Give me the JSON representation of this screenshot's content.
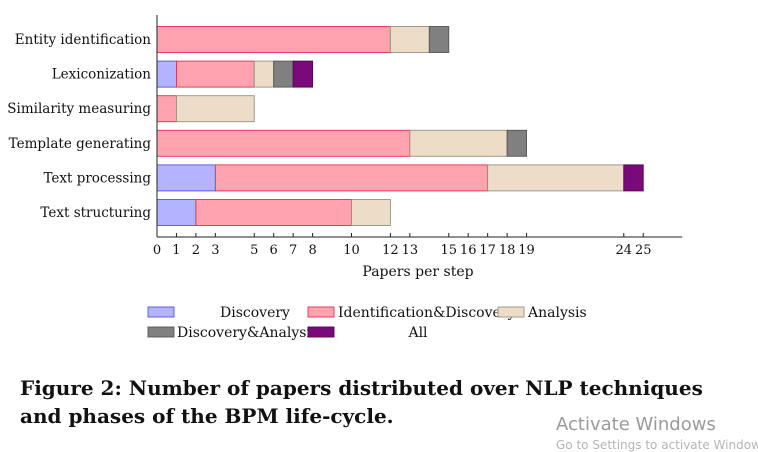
{
  "chart_data": {
    "type": "bar",
    "orientation": "horizontal",
    "stacked": true,
    "categories": [
      "Entity identification",
      "Lexiconization",
      "Similarity measuring",
      "Template generating",
      "Text processing",
      "Text structuring"
    ],
    "series": [
      {
        "name": "Discovery",
        "color": "#b3b3ff",
        "edge": "#5555dd",
        "values": [
          0,
          1,
          0,
          0,
          3,
          2
        ]
      },
      {
        "name": "Identification&Discovery",
        "color": "#ffa3b1",
        "edge": "#e03050",
        "values": [
          12,
          4,
          1,
          13,
          14,
          8
        ]
      },
      {
        "name": "Analysis",
        "color": "#ecdcc8",
        "edge": "#9a8f80",
        "values": [
          2,
          1,
          4,
          5,
          7,
          2
        ]
      },
      {
        "name": "Discovery&Analysis",
        "color": "#808080",
        "edge": "#555555",
        "values": [
          1,
          1,
          0,
          1,
          0,
          0
        ]
      },
      {
        "name": "All",
        "color": "#7a0a7a",
        "edge": "#550055",
        "values": [
          0,
          1,
          0,
          0,
          1,
          0
        ]
      }
    ],
    "xticks": [
      0,
      1,
      2,
      3,
      5,
      6,
      7,
      8,
      10,
      12,
      13,
      15,
      16,
      17,
      18,
      19,
      24,
      25
    ],
    "xlim": [
      0,
      27
    ],
    "xlabel": "Papers per step",
    "ylabel": "",
    "grid": false,
    "legend_position": "bottom"
  },
  "caption": "Figure 2: Number of papers distributed over NLP techniques and phases of the BPM life-cycle.",
  "watermark": {
    "title": "Activate Windows",
    "subtitle": "Go to Settings to activate Windows."
  }
}
